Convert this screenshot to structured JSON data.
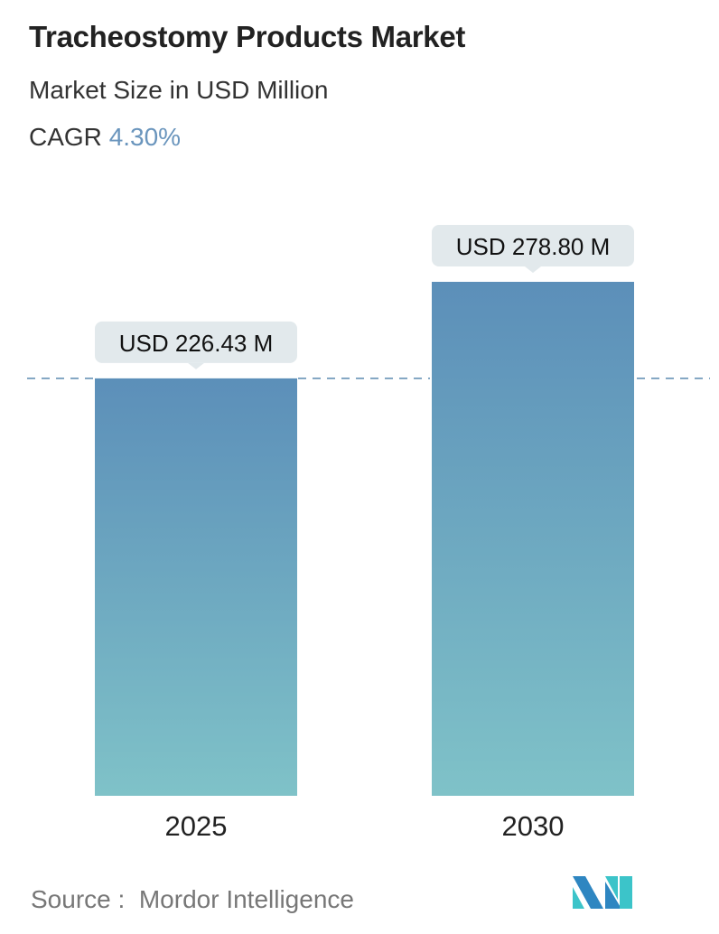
{
  "title": "Tracheostomy Products Market",
  "subtitle": "Market Size in USD Million",
  "cagr_label": "CAGR",
  "cagr_value": "4.30%",
  "source_label": "Source :",
  "source_value": "Mordor Intelligence",
  "colors": {
    "bar_top": "#5c8fb9",
    "bar_bottom": "#7fc2c8",
    "accent": "#6a95bd",
    "dash": "#5b8ab0",
    "label_bg": "#e2e9ec"
  },
  "chart_data": {
    "type": "bar",
    "categories": [
      "2025",
      "2030"
    ],
    "values": [
      226.43,
      278.8
    ],
    "data_labels": [
      "USD 226.43 M",
      "USD 278.80 M"
    ],
    "reference_line": 226.43,
    "ylim": [
      0,
      278.8
    ],
    "grid": false,
    "xlabel": "",
    "ylabel": ""
  }
}
